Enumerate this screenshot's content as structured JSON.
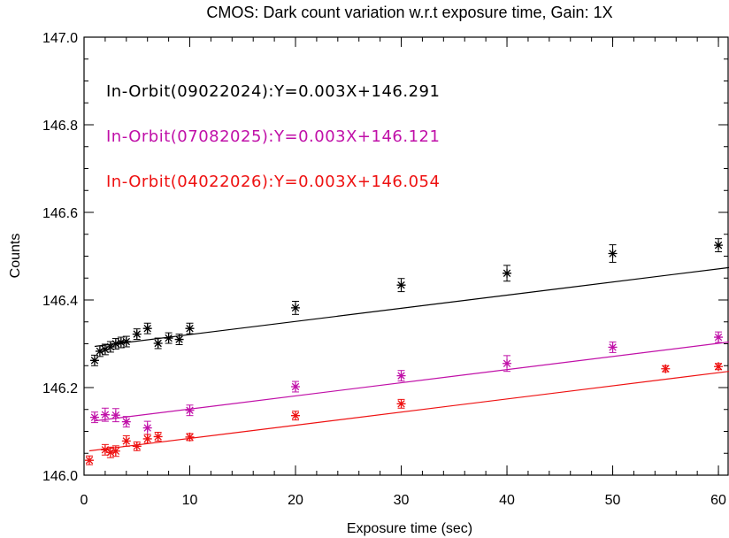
{
  "chart_data": {
    "type": "scatter",
    "title": "CMOS: Dark count variation w.r.t exposure time, Gain: 1X",
    "xlabel": "Exposure time (sec)",
    "ylabel": "Counts",
    "xlim": [
      0,
      61
    ],
    "ylim": [
      146.0,
      147.0
    ],
    "x_ticks": [
      0,
      10,
      20,
      30,
      40,
      50,
      60
    ],
    "y_ticks": [
      146.0,
      146.2,
      146.4,
      146.6,
      146.8,
      147.0
    ],
    "x_tick_labels": [
      "0",
      "10",
      "20",
      "30",
      "40",
      "50",
      "60"
    ],
    "y_tick_labels": [
      "146.0",
      "146.2",
      "146.4",
      "146.6",
      "146.8",
      "147.0"
    ],
    "grid": false,
    "marker": "asterisk",
    "annotations": [
      {
        "text": "In-Orbit(09022024):Y=0.003X+146.291",
        "color": "#000000"
      },
      {
        "text": "In-Orbit(07082025):Y=0.003X+146.121",
        "color": "#c010a8"
      },
      {
        "text": "In-Orbit(04022026):Y=0.003X+146.054",
        "color": "#ee1111"
      }
    ],
    "series": [
      {
        "color": "#000000",
        "fit": {
          "slope": 0.003,
          "intercept": 146.291
        },
        "x": [
          1,
          1.5,
          2,
          2.5,
          3,
          3.5,
          4,
          5,
          6,
          7,
          8,
          9,
          10,
          20,
          30,
          40,
          50,
          60
        ],
        "y": [
          146.262,
          146.283,
          146.287,
          146.293,
          146.3,
          146.303,
          146.305,
          146.322,
          146.335,
          146.301,
          146.313,
          146.31,
          146.335,
          146.382,
          146.434,
          146.461,
          146.506,
          146.525
        ],
        "err": [
          0.012,
          0.012,
          0.012,
          0.012,
          0.012,
          0.012,
          0.012,
          0.012,
          0.012,
          0.012,
          0.012,
          0.012,
          0.012,
          0.015,
          0.015,
          0.018,
          0.02,
          0.015
        ]
      },
      {
        "color": "#c010a8",
        "fit": {
          "slope": 0.003,
          "intercept": 146.121
        },
        "x": [
          1,
          2,
          3,
          4,
          6,
          10,
          20,
          30,
          40,
          50,
          60
        ],
        "y": [
          146.132,
          146.138,
          146.137,
          146.122,
          146.108,
          146.148,
          146.202,
          146.227,
          146.255,
          146.292,
          146.315
        ],
        "err": [
          0.012,
          0.015,
          0.015,
          0.012,
          0.015,
          0.012,
          0.012,
          0.012,
          0.018,
          0.012,
          0.012
        ]
      },
      {
        "color": "#ee1111",
        "fit": {
          "slope": 0.003,
          "intercept": 146.054
        },
        "x": [
          0.5,
          2,
          2.5,
          3,
          4,
          5,
          6,
          7,
          10,
          20,
          30,
          55,
          60
        ],
        "y": [
          146.034,
          146.058,
          146.052,
          146.055,
          146.078,
          146.066,
          146.083,
          146.088,
          146.087,
          146.136,
          146.163,
          146.243,
          146.248
        ],
        "err": [
          0.01,
          0.012,
          0.012,
          0.012,
          0.012,
          0.01,
          0.01,
          0.01,
          0.008,
          0.01,
          0.01,
          0.007,
          0.007
        ]
      }
    ]
  }
}
